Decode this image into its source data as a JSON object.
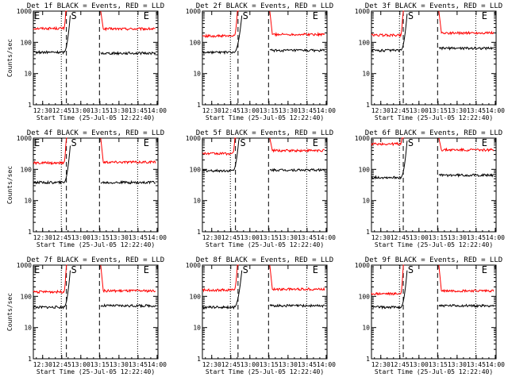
{
  "chart_data": [
    {
      "type": "line",
      "title": "Det 1f BLACK = Events, RED = LLD",
      "start_time_label": "Start Time (25-Jul-05 12:22:40)",
      "ylabel": "Counts/sec",
      "ylog": true,
      "ylim": [
        1,
        1000
      ],
      "y_ticks": [
        "1",
        "10",
        "100",
        "1000"
      ],
      "x_ticks": [
        "12:30",
        "12:45",
        "13:00",
        "13:15",
        "13:30",
        "13:45",
        "14:00"
      ],
      "x_minutes": [
        7.33,
        22.33,
        37.33,
        52.33,
        67.33,
        82.33,
        97.33
      ],
      "xlim": [
        0,
        98
      ],
      "markers": [
        {
          "label": "E",
          "x": 0
        },
        {
          "label": "S",
          "x": 29
        },
        {
          "label": "E",
          "x": 86
        }
      ],
      "dashed_lines": [
        26,
        52
      ],
      "dotted_lines": [
        22,
        82
      ],
      "series": [
        {
          "color": "#ff0000",
          "pre": 280,
          "post": 270,
          "peak_rise": 24
        },
        {
          "color": "#000000",
          "pre": 48,
          "post": 45,
          "peak_rise": 24
        }
      ]
    },
    {
      "type": "line",
      "title": "Det 2f BLACK = Events, RED = LLD",
      "start_time_label": "Start Time (25-Jul-05 12:22:40)",
      "ylabel": "",
      "ylog": true,
      "ylim": [
        1,
        1000
      ],
      "y_ticks": [
        "1",
        "10",
        "100",
        "1000"
      ],
      "x_ticks": [
        "12:30",
        "12:45",
        "13:00",
        "13:15",
        "13:30",
        "13:45",
        "14:00"
      ],
      "x_minutes": [
        7.33,
        22.33,
        37.33,
        52.33,
        67.33,
        82.33,
        97.33
      ],
      "xlim": [
        0,
        98
      ],
      "markers": [
        {
          "label": "S",
          "x": 31
        },
        {
          "label": "E",
          "x": 86
        }
      ],
      "dashed_lines": [
        28,
        52
      ],
      "dotted_lines": [
        22,
        82
      ],
      "series": [
        {
          "color": "#ff0000",
          "pre": 160,
          "post": 180,
          "peak_rise": 25
        },
        {
          "color": "#000000",
          "pre": 48,
          "post": 55,
          "peak_rise": 25
        }
      ]
    },
    {
      "type": "line",
      "title": "Det 3f BLACK = Events, RED = LLD",
      "start_time_label": "Start Time (25-Jul-05 12:22:40)",
      "ylabel": "",
      "ylog": true,
      "ylim": [
        1,
        1000
      ],
      "y_ticks": [
        "1",
        "10",
        "100",
        "1000"
      ],
      "x_ticks": [
        "12:30",
        "12:45",
        "13:00",
        "13:15",
        "13:30",
        "13:45",
        "14:00"
      ],
      "x_minutes": [
        7.33,
        22.33,
        37.33,
        52.33,
        67.33,
        82.33,
        97.33
      ],
      "xlim": [
        0,
        98
      ],
      "markers": [
        {
          "label": "S",
          "x": 28
        },
        {
          "label": "E",
          "x": 86
        }
      ],
      "dashed_lines": [
        25,
        52
      ],
      "dotted_lines": [
        22,
        82
      ],
      "series": [
        {
          "color": "#ff0000",
          "pre": 170,
          "post": 200,
          "peak_rise": 23
        },
        {
          "color": "#000000",
          "pre": 55,
          "post": 65,
          "peak_rise": 23
        }
      ]
    },
    {
      "type": "line",
      "title": "Det 4f BLACK = Events, RED = LLD",
      "start_time_label": "Start Time (25-Jul-05 12:22:40)",
      "ylabel": "Counts/sec",
      "ylog": true,
      "ylim": [
        1,
        1000
      ],
      "y_ticks": [
        "1",
        "10",
        "100",
        "1000"
      ],
      "x_ticks": [
        "12:30",
        "12:45",
        "13:00",
        "13:15",
        "13:30",
        "13:45",
        "14:00"
      ],
      "x_minutes": [
        7.33,
        22.33,
        37.33,
        52.33,
        67.33,
        82.33,
        97.33
      ],
      "xlim": [
        0,
        98
      ],
      "markers": [
        {
          "label": "E",
          "x": 0
        },
        {
          "label": "S",
          "x": 29
        },
        {
          "label": "E",
          "x": 86
        }
      ],
      "dashed_lines": [
        26,
        52
      ],
      "dotted_lines": [
        22,
        82
      ],
      "series": [
        {
          "color": "#ff0000",
          "pre": 160,
          "post": 170,
          "peak_rise": 24
        },
        {
          "color": "#000000",
          "pre": 38,
          "post": 38,
          "peak_rise": 24
        }
      ]
    },
    {
      "type": "line",
      "title": "Det 5f BLACK = Events, RED = LLD",
      "start_time_label": "Start Time (25-Jul-05 12:22:40)",
      "ylabel": "",
      "ylog": true,
      "ylim": [
        1,
        1000
      ],
      "y_ticks": [
        "1",
        "10",
        "100",
        "1000"
      ],
      "x_ticks": [
        "12:30",
        "12:45",
        "13:00",
        "13:15",
        "13:30",
        "13:45",
        "14:00"
      ],
      "x_minutes": [
        7.33,
        22.33,
        37.33,
        52.33,
        67.33,
        82.33,
        97.33
      ],
      "xlim": [
        0,
        98
      ],
      "markers": [
        {
          "label": "S",
          "x": 29
        },
        {
          "label": "E",
          "x": 86
        }
      ],
      "dashed_lines": [
        26,
        52
      ],
      "dotted_lines": [
        22,
        82
      ],
      "series": [
        {
          "color": "#ff0000",
          "pre": 320,
          "post": 400,
          "peak_rise": 24
        },
        {
          "color": "#000000",
          "pre": 90,
          "post": 95,
          "peak_rise": 24
        }
      ]
    },
    {
      "type": "line",
      "title": "Det 6f BLACK = Events, RED = LLD",
      "start_time_label": "Start Time (25-Jul-05 12:22:40)",
      "ylabel": "",
      "ylog": true,
      "ylim": [
        1,
        1000
      ],
      "y_ticks": [
        "1",
        "10",
        "100",
        "1000"
      ],
      "x_ticks": [
        "12:30",
        "12:45",
        "13:00",
        "13:15",
        "13:30",
        "13:45",
        "14:00"
      ],
      "x_minutes": [
        7.33,
        22.33,
        37.33,
        52.33,
        67.33,
        82.33,
        97.33
      ],
      "xlim": [
        0,
        98
      ],
      "markers": [
        {
          "label": "S",
          "x": 28
        },
        {
          "label": "E",
          "x": 86
        }
      ],
      "dashed_lines": [
        25,
        52
      ],
      "dotted_lines": [
        22,
        82
      ],
      "series": [
        {
          "color": "#ff0000",
          "pre": 650,
          "post": 420,
          "peak_rise": 23
        },
        {
          "color": "#000000",
          "pre": 55,
          "post": 65,
          "peak_rise": 23
        }
      ]
    },
    {
      "type": "line",
      "title": "Det 7f BLACK = Events, RED = LLD",
      "start_time_label": "Start Time (25-Jul-05 12:22:40)",
      "ylabel": "Counts/sec",
      "ylog": true,
      "ylim": [
        1,
        1000
      ],
      "y_ticks": [
        "1",
        "10",
        "100",
        "1000"
      ],
      "x_ticks": [
        "12:30",
        "12:45",
        "13:00",
        "13:15",
        "13:30",
        "13:45",
        "14:00"
      ],
      "x_minutes": [
        7.33,
        22.33,
        37.33,
        52.33,
        67.33,
        82.33,
        97.33
      ],
      "xlim": [
        0,
        98
      ],
      "markers": [
        {
          "label": "E",
          "x": 0
        },
        {
          "label": "S",
          "x": 29
        },
        {
          "label": "E",
          "x": 86
        }
      ],
      "dashed_lines": [
        26,
        52
      ],
      "dotted_lines": [
        22,
        82
      ],
      "series": [
        {
          "color": "#ff0000",
          "pre": 140,
          "post": 150,
          "peak_rise": 24
        },
        {
          "color": "#000000",
          "pre": 45,
          "post": 50,
          "peak_rise": 24
        }
      ]
    },
    {
      "type": "line",
      "title": "Det 8f BLACK = Events, RED = LLD",
      "start_time_label": "Start Time (25-Jul-05 12:22:40)",
      "ylabel": "",
      "ylog": true,
      "ylim": [
        1,
        1000
      ],
      "y_ticks": [
        "1",
        "10",
        "100",
        "1000"
      ],
      "x_ticks": [
        "12:30",
        "12:45",
        "13:00",
        "13:15",
        "13:30",
        "13:45",
        "14:00"
      ],
      "x_minutes": [
        7.33,
        22.33,
        37.33,
        52.33,
        67.33,
        82.33,
        97.33
      ],
      "xlim": [
        0,
        98
      ],
      "markers": [
        {
          "label": "S",
          "x": 31
        },
        {
          "label": "E",
          "x": 86
        }
      ],
      "dashed_lines": [
        28,
        52
      ],
      "dotted_lines": [
        22,
        82
      ],
      "series": [
        {
          "color": "#ff0000",
          "pre": 160,
          "post": 170,
          "peak_rise": 25
        },
        {
          "color": "#000000",
          "pre": 45,
          "post": 50,
          "peak_rise": 25
        }
      ]
    },
    {
      "type": "line",
      "title": "Det 9f BLACK = Events, RED = LLD",
      "start_time_label": "Start Time (25-Jul-05 12:22:40)",
      "ylabel": "",
      "ylog": true,
      "ylim": [
        1,
        1000
      ],
      "y_ticks": [
        "1",
        "10",
        "100",
        "1000"
      ],
      "x_ticks": [
        "12:30",
        "12:45",
        "13:00",
        "13:15",
        "13:30",
        "13:45",
        "14:00"
      ],
      "x_minutes": [
        7.33,
        22.33,
        37.33,
        52.33,
        67.33,
        82.33,
        97.33
      ],
      "xlim": [
        0,
        98
      ],
      "markers": [
        {
          "label": "S",
          "x": 28
        },
        {
          "label": "E",
          "x": 86
        }
      ],
      "dashed_lines": [
        25,
        52
      ],
      "dotted_lines": [
        22,
        82
      ],
      "series": [
        {
          "color": "#ff0000",
          "pre": 120,
          "post": 150,
          "peak_rise": 23
        },
        {
          "color": "#000000",
          "pre": 45,
          "post": 50,
          "peak_rise": 23
        }
      ]
    }
  ]
}
